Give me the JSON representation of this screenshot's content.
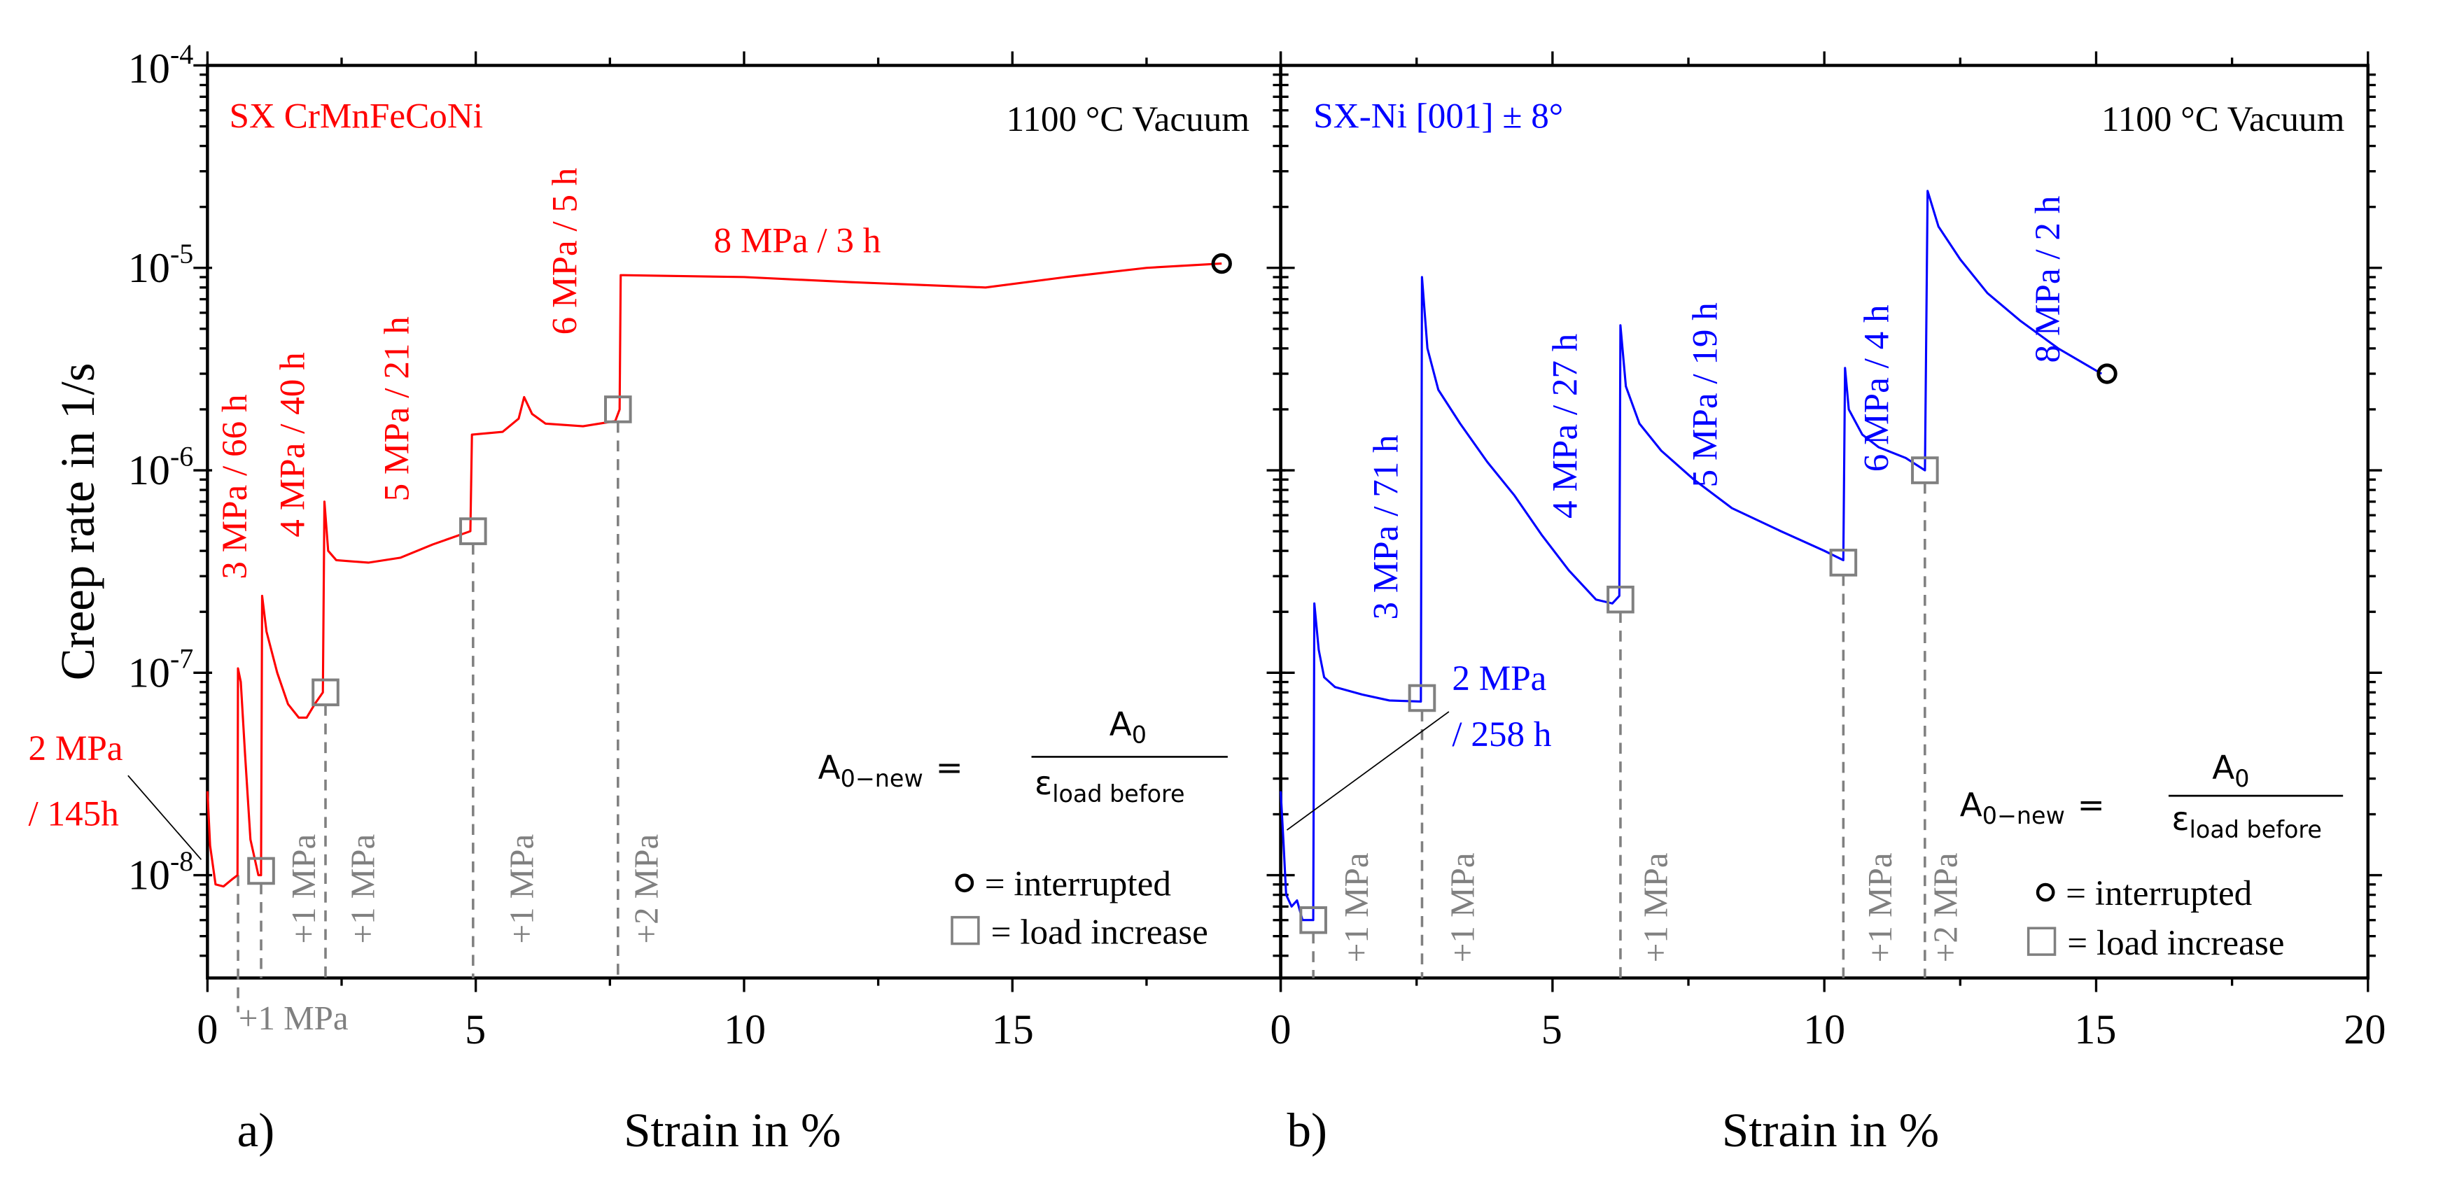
{
  "figure_labels": {
    "a": "a)",
    "b": "b)"
  },
  "chart_data": [
    {
      "type": "line",
      "panel": "a",
      "title": "SX CrMnFeCoNi",
      "condition": "1100 °C Vacuum",
      "xlabel": "Strain in %",
      "ylabel": "Creep rate in 1/s",
      "xlim": [
        0,
        20
      ],
      "ylim": [
        3.1e-09,
        0.0001
      ],
      "yscale": "log",
      "x_ticks": [
        "0",
        "5",
        "10",
        "15"
      ],
      "y_ticks": [
        {
          "base": "10",
          "exp": "-4"
        },
        {
          "base": "10",
          "exp": "-5"
        },
        {
          "base": "10",
          "exp": "-6"
        },
        {
          "base": "10",
          "exp": "-7"
        },
        {
          "base": "10",
          "exp": "-8"
        }
      ],
      "color": "#ff0000",
      "series": [
        {
          "name": "SX CrMnFeCoNi",
          "points": [
            [
              0,
              2.6e-08
            ],
            [
              0.05,
              1.4e-08
            ],
            [
              0.15,
              9e-09
            ],
            [
              0.3,
              8.8e-09
            ],
            [
              0.45,
              9.5e-09
            ],
            [
              0.56,
              1e-08
            ],
            [
              0.57,
              1.05e-07
            ],
            [
              0.62,
              9e-08
            ],
            [
              0.7,
              4e-08
            ],
            [
              0.8,
              1.5e-08
            ],
            [
              0.95,
              1e-08
            ],
            [
              1.0,
              1e-08
            ],
            [
              1.02,
              2.4e-07
            ],
            [
              1.1,
              1.6e-07
            ],
            [
              1.3,
              1e-07
            ],
            [
              1.5,
              7e-08
            ],
            [
              1.7,
              6e-08
            ],
            [
              1.85,
              6e-08
            ],
            [
              2.0,
              7e-08
            ],
            [
              2.15,
              8e-08
            ],
            [
              2.18,
              7e-07
            ],
            [
              2.25,
              4e-07
            ],
            [
              2.4,
              3.6e-07
            ],
            [
              3.0,
              3.5e-07
            ],
            [
              3.6,
              3.7e-07
            ],
            [
              4.2,
              4.3e-07
            ],
            [
              4.9,
              5e-07
            ],
            [
              4.93,
              1.5e-06
            ],
            [
              5.5,
              1.55e-06
            ],
            [
              5.8,
              1.8e-06
            ],
            [
              5.9,
              2.3e-06
            ],
            [
              6.05,
              1.9e-06
            ],
            [
              6.3,
              1.7e-06
            ],
            [
              7.0,
              1.65e-06
            ],
            [
              7.6,
              1.75e-06
            ],
            [
              7.68,
              2e-06
            ],
            [
              7.7,
              9.2e-06
            ],
            [
              10,
              9e-06
            ],
            [
              12,
              8.5e-06
            ],
            [
              14.5,
              8e-06
            ],
            [
              16,
              9e-06
            ],
            [
              17.5,
              1e-05
            ],
            [
              18.9,
              1.05e-05
            ]
          ]
        }
      ],
      "load_increases": [
        {
          "strain": 0.57,
          "rate": null,
          "label": "+1 MPa"
        },
        {
          "strain": 1.0,
          "rate": 1.05e-08,
          "label": "+1 MPa"
        },
        {
          "strain": 2.2,
          "rate": 8e-08,
          "label": "+1 MPa"
        },
        {
          "strain": 4.95,
          "rate": 5e-07,
          "label": "+1 MPa"
        },
        {
          "strain": 7.65,
          "rate": 2e-06,
          "label": "+2 MPa"
        }
      ],
      "interrupted": {
        "strain": 18.9,
        "rate": 1.05e-05
      },
      "annotations": {
        "s2_a": "2 MPa",
        "s2_b": "/ 145h",
        "s3": "3 MPa / 66 h",
        "s4": "4 MPa / 40 h",
        "s5": "5 MPa / 21 h",
        "s6": "6 MPa / 5 h",
        "s8": "8 MPa / 3 h"
      }
    },
    {
      "type": "line",
      "panel": "b",
      "title": "SX-Ni [001] ± 8°",
      "condition": "1100 °C Vacuum",
      "xlabel": "Strain in %",
      "xlim": [
        0,
        20
      ],
      "ylim": [
        3.1e-09,
        0.0001
      ],
      "yscale": "log",
      "x_ticks": [
        "0",
        "5",
        "10",
        "15",
        "20"
      ],
      "color": "#0000ff",
      "series": [
        {
          "name": "SX-Ni [001] ± 8°",
          "points": [
            [
              0,
              2.6e-08
            ],
            [
              0.05,
              1.5e-08
            ],
            [
              0.1,
              8e-09
            ],
            [
              0.2,
              7e-09
            ],
            [
              0.3,
              7.5e-09
            ],
            [
              0.4,
              6e-09
            ],
            [
              0.6,
              6e-09
            ],
            [
              0.62,
              2.2e-07
            ],
            [
              0.7,
              1.3e-07
            ],
            [
              0.8,
              9.5e-08
            ],
            [
              1.0,
              8.5e-08
            ],
            [
              1.5,
              7.8e-08
            ],
            [
              2.0,
              7.3e-08
            ],
            [
              2.58,
              7.2e-08
            ],
            [
              2.6,
              9e-06
            ],
            [
              2.7,
              4e-06
            ],
            [
              2.9,
              2.5e-06
            ],
            [
              3.3,
              1.7e-06
            ],
            [
              3.8,
              1.1e-06
            ],
            [
              4.3,
              7.5e-07
            ],
            [
              4.8,
              4.8e-07
            ],
            [
              5.3,
              3.2e-07
            ],
            [
              5.8,
              2.3e-07
            ],
            [
              6.1,
              2.2e-07
            ],
            [
              6.23,
              2.4e-07
            ],
            [
              6.25,
              5.2e-06
            ],
            [
              6.35,
              2.6e-06
            ],
            [
              6.6,
              1.7e-06
            ],
            [
              7.0,
              1.25e-06
            ],
            [
              7.6,
              9e-07
            ],
            [
              8.3,
              6.5e-07
            ],
            [
              9.2,
              5e-07
            ],
            [
              10.0,
              4e-07
            ],
            [
              10.35,
              3.6e-07
            ],
            [
              10.38,
              3.2e-06
            ],
            [
              10.45,
              2e-06
            ],
            [
              10.7,
              1.5e-06
            ],
            [
              11.0,
              1.3e-06
            ],
            [
              11.5,
              1.15e-06
            ],
            [
              11.85,
              1e-06
            ],
            [
              11.9,
              2.4e-05
            ],
            [
              12.1,
              1.6e-05
            ],
            [
              12.5,
              1.1e-05
            ],
            [
              13.0,
              7.5e-06
            ],
            [
              13.6,
              5.5e-06
            ],
            [
              14.3,
              4e-06
            ],
            [
              15.1,
              3e-06
            ]
          ]
        }
      ],
      "load_increases": [
        {
          "strain": 0.6,
          "rate": 6e-09,
          "label": "+1 MPa"
        },
        {
          "strain": 2.6,
          "rate": 7.5e-08,
          "label": "+1 MPa"
        },
        {
          "strain": 6.25,
          "rate": 2.3e-07,
          "label": "+1 MPa"
        },
        {
          "strain": 10.35,
          "rate": 3.5e-07,
          "label": "+1 MPa"
        },
        {
          "strain": 11.85,
          "rate": 1e-06,
          "label": "+2 MPa"
        }
      ],
      "interrupted": {
        "strain": 15.2,
        "rate": 3e-06
      },
      "annotations": {
        "s2_a": "2 MPa",
        "s2_b": "/ 258 h",
        "s3": "3 MPa / 71 h",
        "s4": "4 MPa / 27 h",
        "s5": "5 MPa / 19 h",
        "s6": "6 MPa / 4 h",
        "s8": "8 MPa / 2 h"
      }
    }
  ],
  "formula": {
    "lhs": "A",
    "lhs_sub": "0−new",
    "eq": "=",
    "num": "A",
    "num_sub": "0",
    "den": "ε",
    "den_sub": "load before"
  },
  "legend": {
    "circle_label": "= interrupted",
    "square_label": "= load increase"
  }
}
